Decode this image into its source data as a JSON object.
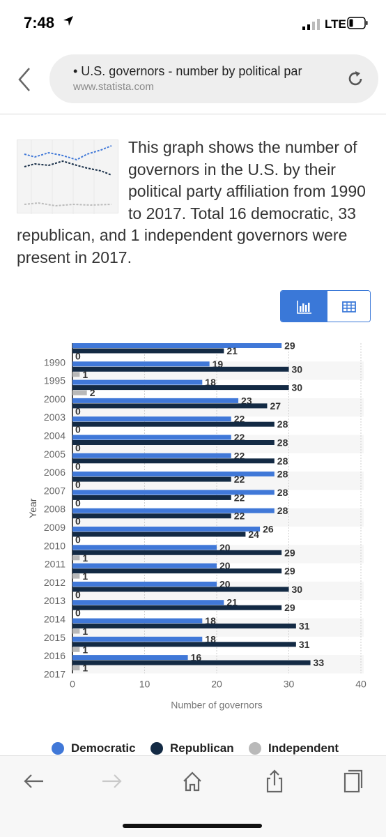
{
  "status": {
    "time": "7:48",
    "network": "LTE"
  },
  "browser": {
    "page_title": "• U.S. governors - number by political par",
    "host": "www.statista.com"
  },
  "intro_text": "This graph shows the number of governors in the U.S. by their political party affiliation from 1990 to 2017. Total 16 democratic, 33 republican, and 1 independent governors were present in 2017.",
  "colors": {
    "democratic": "#4078d8",
    "republican": "#132a44",
    "independent": "#b9b9b9",
    "accent": "#3a78d8"
  },
  "chart_data": {
    "type": "bar",
    "orientation": "horizontal",
    "ylabel": "Year",
    "xlabel": "Number of governors",
    "xlim": [
      0,
      40
    ],
    "xticks": [
      0,
      10,
      20,
      30,
      40
    ],
    "grid": true,
    "legend_position": "bottom",
    "categories": [
      "1990",
      "1995",
      "2000",
      "2003",
      "2004",
      "2005",
      "2006",
      "2007",
      "2008",
      "2009",
      "2010",
      "2011",
      "2012",
      "2013",
      "2014",
      "2015",
      "2016",
      "2017"
    ],
    "series": [
      {
        "name": "Democratic",
        "values": [
          29,
          19,
          18,
          23,
          22,
          22,
          22,
          28,
          28,
          28,
          26,
          20,
          20,
          20,
          21,
          18,
          18,
          16
        ]
      },
      {
        "name": "Republican",
        "values": [
          21,
          30,
          30,
          27,
          28,
          28,
          28,
          22,
          22,
          22,
          24,
          29,
          29,
          30,
          29,
          31,
          31,
          33
        ]
      },
      {
        "name": "Independent",
        "values": [
          0,
          1,
          2,
          0,
          0,
          0,
          0,
          0,
          0,
          0,
          0,
          1,
          1,
          0,
          0,
          1,
          1,
          1
        ]
      }
    ]
  },
  "toolbar": {
    "icons": [
      "back-arrow-icon",
      "forward-arrow-icon",
      "home-icon",
      "share-icon",
      "tabs-icon"
    ]
  }
}
